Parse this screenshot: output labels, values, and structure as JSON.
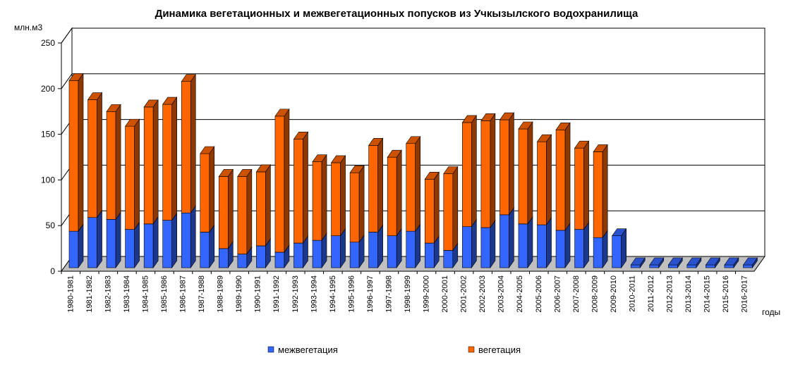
{
  "chart_data": {
    "type": "bar",
    "stacked": true,
    "three_d": true,
    "title": "Динамика вегетационных и межвегетационных попусков из Учкызылского водохранилища",
    "ylabel": "млн.м3",
    "xlabel": "годы",
    "ylim": [
      0,
      250
    ],
    "yticks": [
      0,
      50,
      100,
      150,
      200,
      250
    ],
    "grid": true,
    "legend_position": "bottom",
    "categories": [
      "1980-1981",
      "1981-1982",
      "1982-1983",
      "1983-1984",
      "1984-1985",
      "1985-1986",
      "1986-1987",
      "1987-1988",
      "1988-1989",
      "1989-1990",
      "1990-1991",
      "1991-1992",
      "1992-1993",
      "1993-1994",
      "1994-1995",
      "1995-1996",
      "1996-1997",
      "1997-1998",
      "1998-1999",
      "1999-2000",
      "2000-2001",
      "2001-2002",
      "2002-2003",
      "2003-2004",
      "2004-2005",
      "2005-2006",
      "2006-2007",
      "2007-2008",
      "2008-2009",
      "2009-2010",
      "2010-2011",
      "2011-2012",
      "2012-2013",
      "2013-2014",
      "2014-2015",
      "2015-2016",
      "2016-2017"
    ],
    "series": [
      {
        "name": "межвегетация",
        "color": "#3366ff",
        "values": [
          40,
          55,
          53,
          42,
          48,
          52,
          60,
          39,
          21,
          15,
          24,
          17,
          27,
          30,
          35,
          28,
          39,
          35,
          40,
          27,
          19,
          45,
          44,
          58,
          48,
          47,
          41,
          42,
          33,
          35,
          0,
          0,
          0,
          0,
          0,
          0,
          0
        ]
      },
      {
        "name": "вегетация",
        "color": "#ff6600",
        "values": [
          165,
          129,
          118,
          113,
          128,
          127,
          144,
          86,
          79,
          85,
          81,
          149,
          114,
          86,
          80,
          76,
          95,
          86,
          96,
          70,
          84,
          114,
          117,
          104,
          104,
          91,
          110,
          89,
          94,
          0,
          0,
          0,
          0,
          0,
          0,
          0,
          0
        ]
      }
    ]
  }
}
